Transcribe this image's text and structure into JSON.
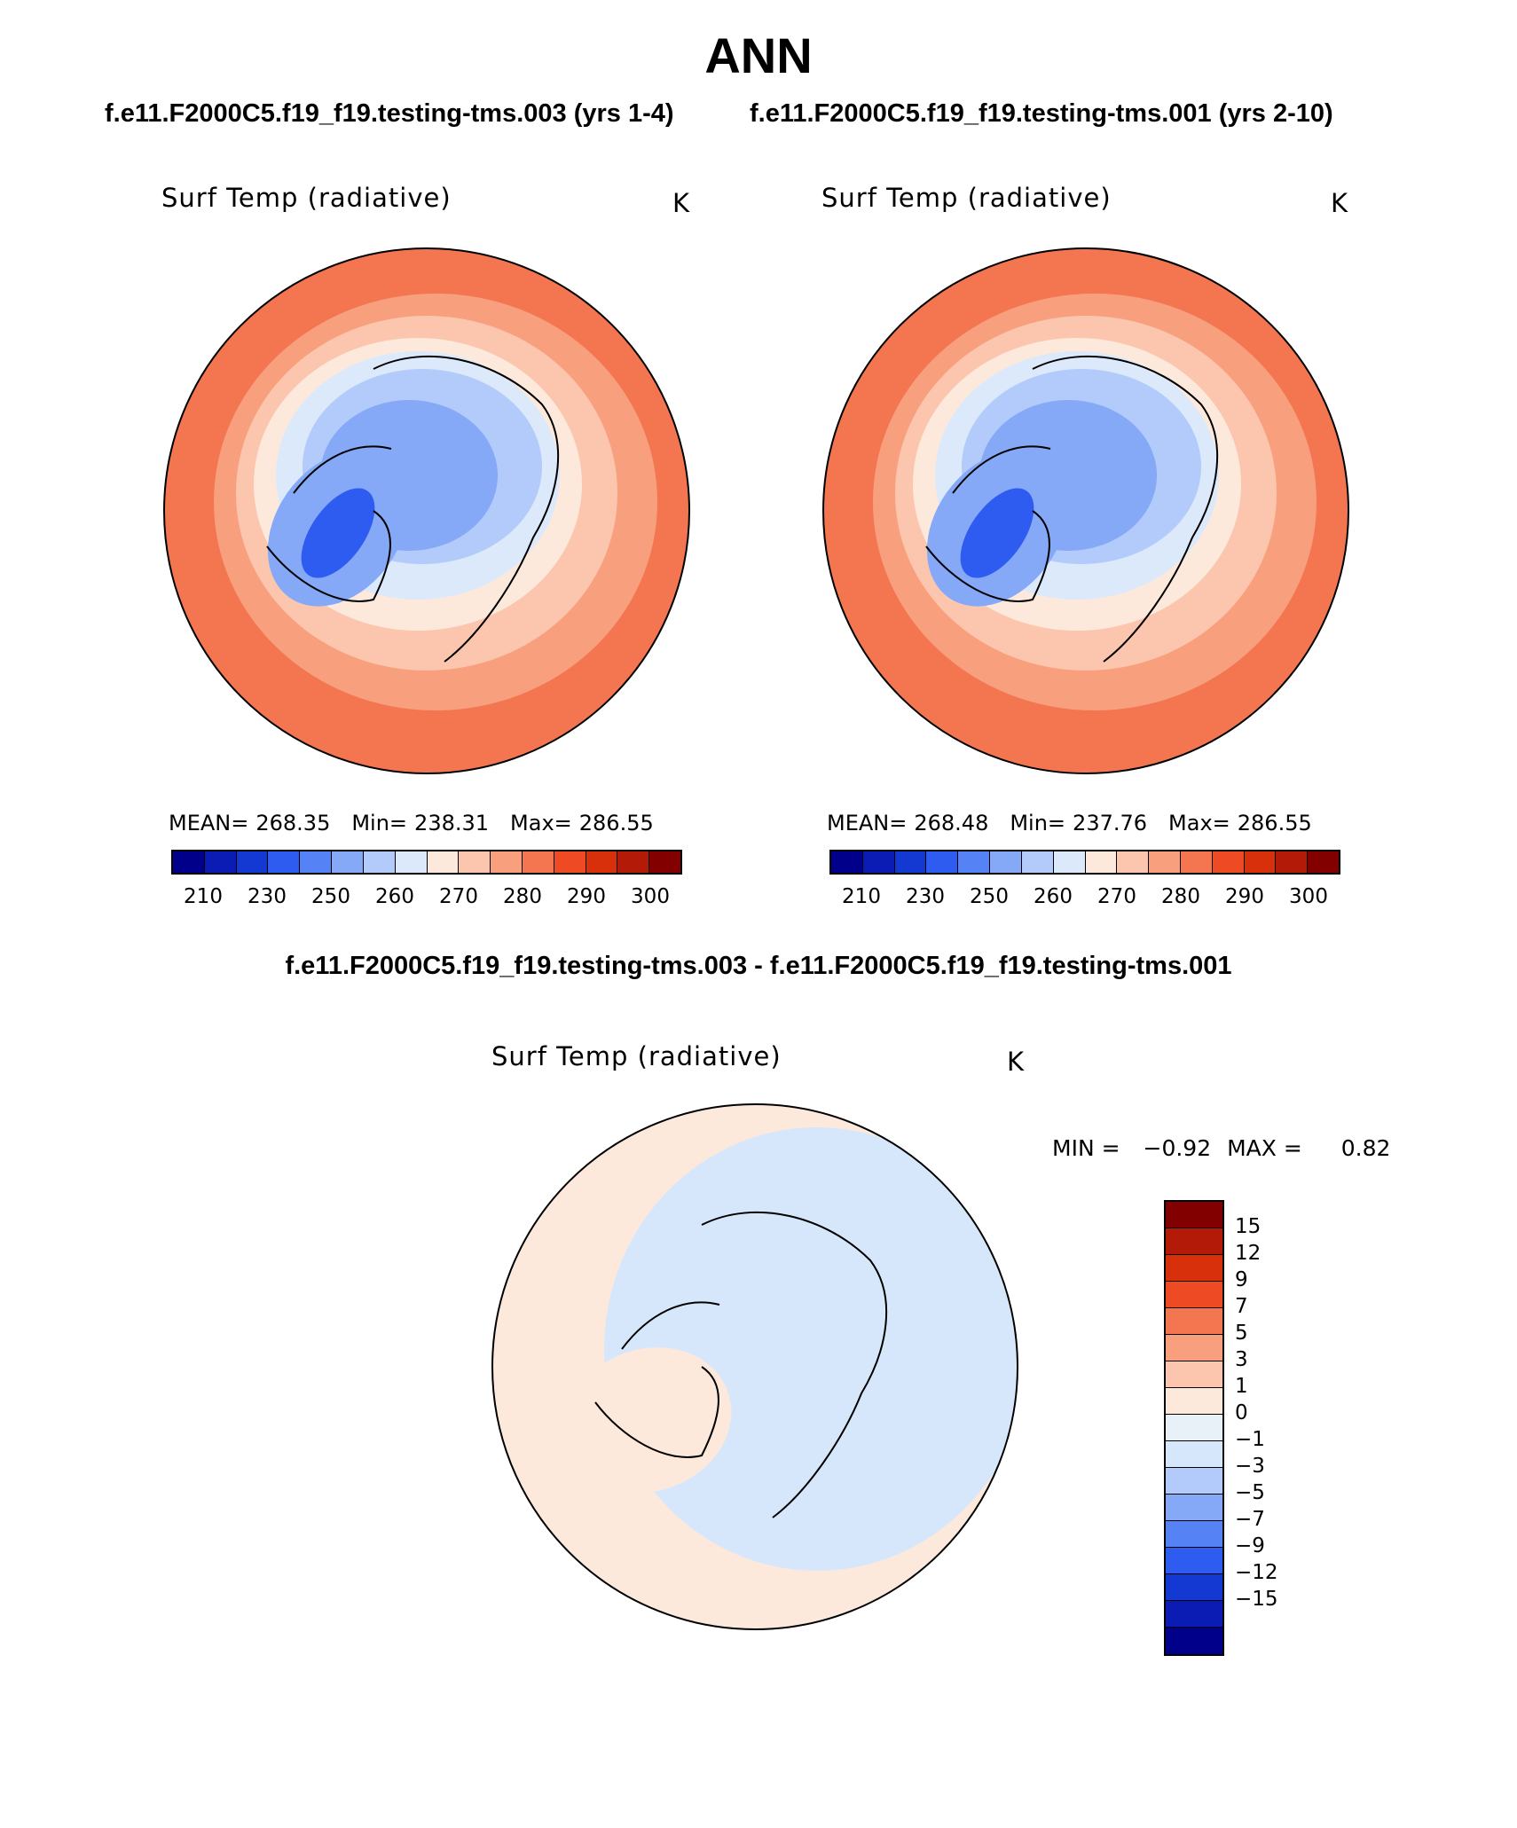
{
  "header": {
    "title": "ANN",
    "case1_title": "f.e11.F2000C5.f19_f19.testing-tms.003 (yrs 1-4)",
    "case2_title": "f.e11.F2000C5.f19_f19.testing-tms.001 (yrs 2-10)",
    "diff_title": "f.e11.F2000C5.f19_f19.testing-tms.003 - f.e11.F2000C5.f19_f19.testing-tms.001"
  },
  "panels": [
    {
      "variable": "Surf Temp (radiative)",
      "units": "K",
      "mean_label": "MEAN=",
      "mean": "268.35",
      "min_label": "Min=",
      "min": "238.31",
      "max_label": "Max=",
      "max": "286.55"
    },
    {
      "variable": "Surf Temp (radiative)",
      "units": "K",
      "mean_label": "MEAN=",
      "mean": "268.48",
      "min_label": "Min=",
      "min": "237.76",
      "max_label": "Max=",
      "max": "286.55"
    }
  ],
  "abs_colorbar": {
    "colors": [
      "#00008b",
      "#0a1cb4",
      "#1438d2",
      "#2e5cf0",
      "#5582f5",
      "#85a8f7",
      "#b2cbfa",
      "#dce9fb",
      "#fde9dc",
      "#fcc6ae",
      "#f8a07e",
      "#f37651",
      "#ee4a24",
      "#d8300a",
      "#b31a08",
      "#820000"
    ],
    "ticks": [
      "210",
      "230",
      "250",
      "260",
      "270",
      "280",
      "290",
      "300"
    ]
  },
  "diff_panel": {
    "variable": "Surf Temp (radiative)",
    "units": "K",
    "min_label": "MIN =",
    "min": "−0.92",
    "max_label": "MAX =",
    "max": "0.82"
  },
  "diff_colorbar": {
    "colors": [
      "#820000",
      "#b31a08",
      "#d8300a",
      "#ee4a24",
      "#f37651",
      "#f8a07e",
      "#fcc6ae",
      "#fde9dc",
      "#e8f0f8",
      "#d6e7fb",
      "#b2cbfa",
      "#85a8f7",
      "#5582f5",
      "#2e5cf0",
      "#1438d2",
      "#0a1cb4",
      "#00008b"
    ],
    "ticks": [
      "15",
      "12",
      "9",
      "7",
      "5",
      "3",
      "1",
      "0",
      "−1",
      "−3",
      "−5",
      "−7",
      "−9",
      "−12",
      "−15"
    ]
  },
  "colors": {
    "cold": "#85a8f7",
    "very_cold": "#2e5cf0",
    "cool": "#b2cbfa",
    "neutral_cool": "#dce9fb",
    "neutral_warm": "#fde9dc",
    "warm": "#fcc6ae",
    "hot": "#f8a07e",
    "very_hot": "#f37651",
    "diff_pos": "#fde9dc",
    "diff_neg": "#d6e7fb"
  }
}
